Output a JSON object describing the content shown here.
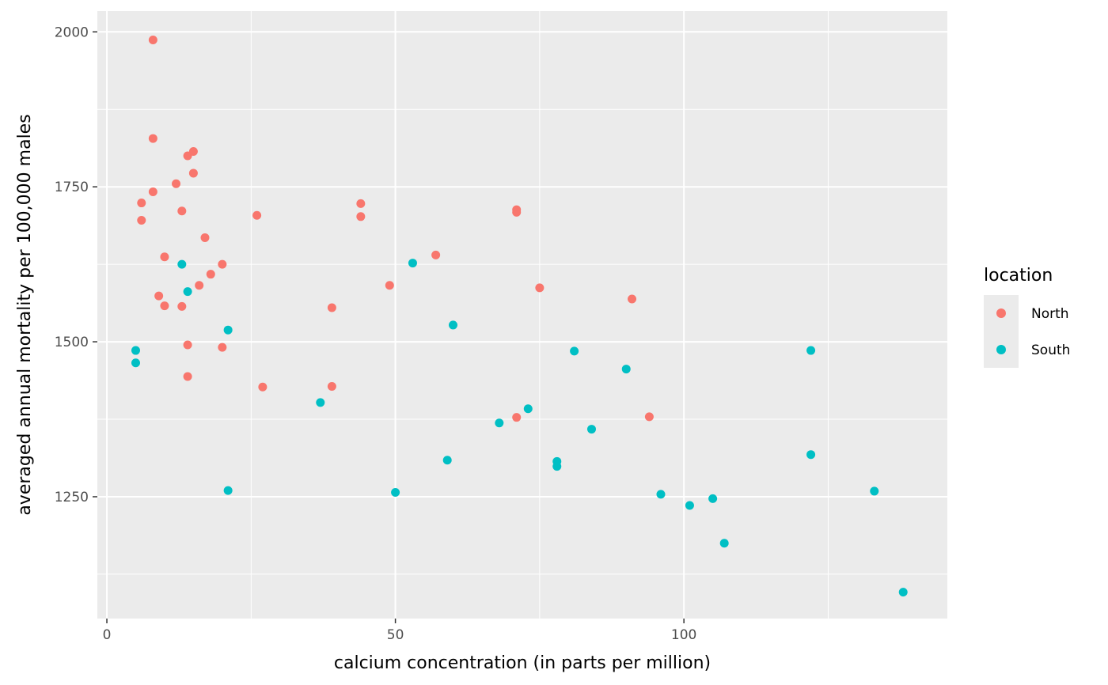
{
  "chart_data": {
    "type": "scatter",
    "title": "",
    "xlabel": "calcium concentration (in parts per million)",
    "ylabel": "averaged annual mortality per 100,000 males",
    "xlim": [
      -1.65,
      145.65
    ],
    "ylim": [
      1053.45,
      2033.55
    ],
    "x_ticks": [
      0,
      50,
      100
    ],
    "x_tick_labels": [
      "0",
      "50",
      "100"
    ],
    "y_ticks": [
      1250,
      1500,
      1750,
      2000
    ],
    "y_tick_labels": [
      "1250",
      "1500",
      "1750",
      "2000"
    ],
    "grid": true,
    "background": "#EBEBEB",
    "legend": {
      "title": "location",
      "placement": "right"
    },
    "series": [
      {
        "name": "North",
        "color": "#F8766D",
        "x": [
          8,
          8,
          15,
          14,
          15,
          12,
          8,
          6,
          44,
          71,
          71,
          13,
          26,
          44,
          6,
          17,
          10,
          57,
          20,
          18,
          16,
          49,
          75,
          9,
          91,
          10,
          13,
          39,
          14,
          20,
          14,
          39,
          27,
          71,
          94
        ],
        "y": [
          1987,
          1828,
          1807,
          1800,
          1772,
          1755,
          1742,
          1724,
          1723,
          1713,
          1709,
          1711,
          1704,
          1702,
          1696,
          1668,
          1637,
          1640,
          1625,
          1609,
          1591,
          1591,
          1587,
          1574,
          1569,
          1558,
          1557,
          1555,
          1495,
          1491,
          1444,
          1428,
          1427,
          1378,
          1379
        ]
      },
      {
        "name": "South",
        "color": "#00BFC4",
        "x": [
          53,
          13,
          14,
          60,
          21,
          5,
          81,
          122,
          5,
          90,
          37,
          73,
          68,
          84,
          122,
          59,
          78,
          78,
          21,
          133,
          50,
          96,
          105,
          101,
          107,
          138
        ],
        "y": [
          1627,
          1625,
          1581,
          1527,
          1519,
          1486,
          1485,
          1486,
          1466,
          1456,
          1402,
          1392,
          1369,
          1359,
          1318,
          1309,
          1307,
          1299,
          1260,
          1259,
          1257,
          1254,
          1247,
          1236,
          1175,
          1096
        ]
      }
    ]
  }
}
